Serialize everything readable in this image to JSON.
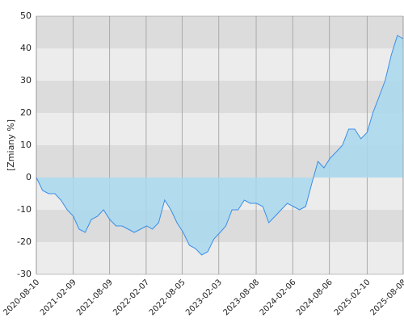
{
  "chart_data": {
    "type": "area",
    "y_label": "[Zmiany %]",
    "x": [
      "2020-08-10",
      "2020-09-10",
      "2020-10-10",
      "2020-11-10",
      "2020-12-10",
      "2021-01-10",
      "2021-02-10",
      "2021-03-10",
      "2021-04-10",
      "2021-05-10",
      "2021-06-10",
      "2021-07-10",
      "2021-08-10",
      "2021-09-10",
      "2021-10-10",
      "2021-11-10",
      "2021-12-10",
      "2022-01-10",
      "2022-02-10",
      "2022-03-10",
      "2022-04-10",
      "2022-05-10",
      "2022-06-10",
      "2022-07-10",
      "2022-08-10",
      "2022-09-10",
      "2022-10-10",
      "2022-11-10",
      "2022-12-10",
      "2023-01-10",
      "2023-02-10",
      "2023-03-10",
      "2023-04-10",
      "2023-05-10",
      "2023-06-10",
      "2023-07-10",
      "2023-08-10",
      "2023-09-10",
      "2023-10-10",
      "2023-11-10",
      "2023-12-10",
      "2024-01-10",
      "2024-02-10",
      "2024-03-10",
      "2024-04-10",
      "2024-05-10",
      "2024-06-10",
      "2024-07-10",
      "2024-08-10",
      "2024-09-10",
      "2024-10-10",
      "2024-11-10",
      "2024-12-10",
      "2025-01-10",
      "2025-02-10",
      "2025-03-10",
      "2025-04-10",
      "2025-05-10",
      "2025-06-10",
      "2025-07-10",
      "2025-08-08"
    ],
    "values": [
      0,
      -4,
      -5,
      -5,
      -7,
      -10,
      -12,
      -16,
      -17,
      -13,
      -12,
      -10,
      -13,
      -15,
      -15,
      -16,
      -17,
      -16,
      -15,
      -16,
      -14,
      -7,
      -10,
      -14,
      -17,
      -21,
      -22,
      -24,
      -23,
      -19,
      -17,
      -15,
      -10,
      -10,
      -7,
      -8,
      -8,
      -9,
      -14,
      -12,
      -10,
      -8,
      -9,
      -10,
      -9,
      -2,
      5,
      3,
      6,
      8,
      10,
      15,
      15,
      12,
      14,
      20,
      25,
      30,
      38,
      44,
      43
    ],
    "line_color": "#3a8ee6",
    "fill_color": "#a8d8ee",
    "band_colors": [
      "#ececec",
      "#dcdcdc"
    ],
    "xlim": [
      "2020-08-10",
      "2025-08-08"
    ],
    "xticks": [
      "2020-08-10",
      "2021-02-09",
      "2021-08-09",
      "2022-02-07",
      "2022-08-05",
      "2023-02-03",
      "2023-08-08",
      "2024-02-06",
      "2024-08-06",
      "2025-02-10",
      "2025-08-08"
    ],
    "ylim": [
      -30,
      50
    ],
    "yticks": [
      -30,
      -20,
      -10,
      0,
      10,
      20,
      30,
      40,
      50
    ],
    "grid": true
  }
}
